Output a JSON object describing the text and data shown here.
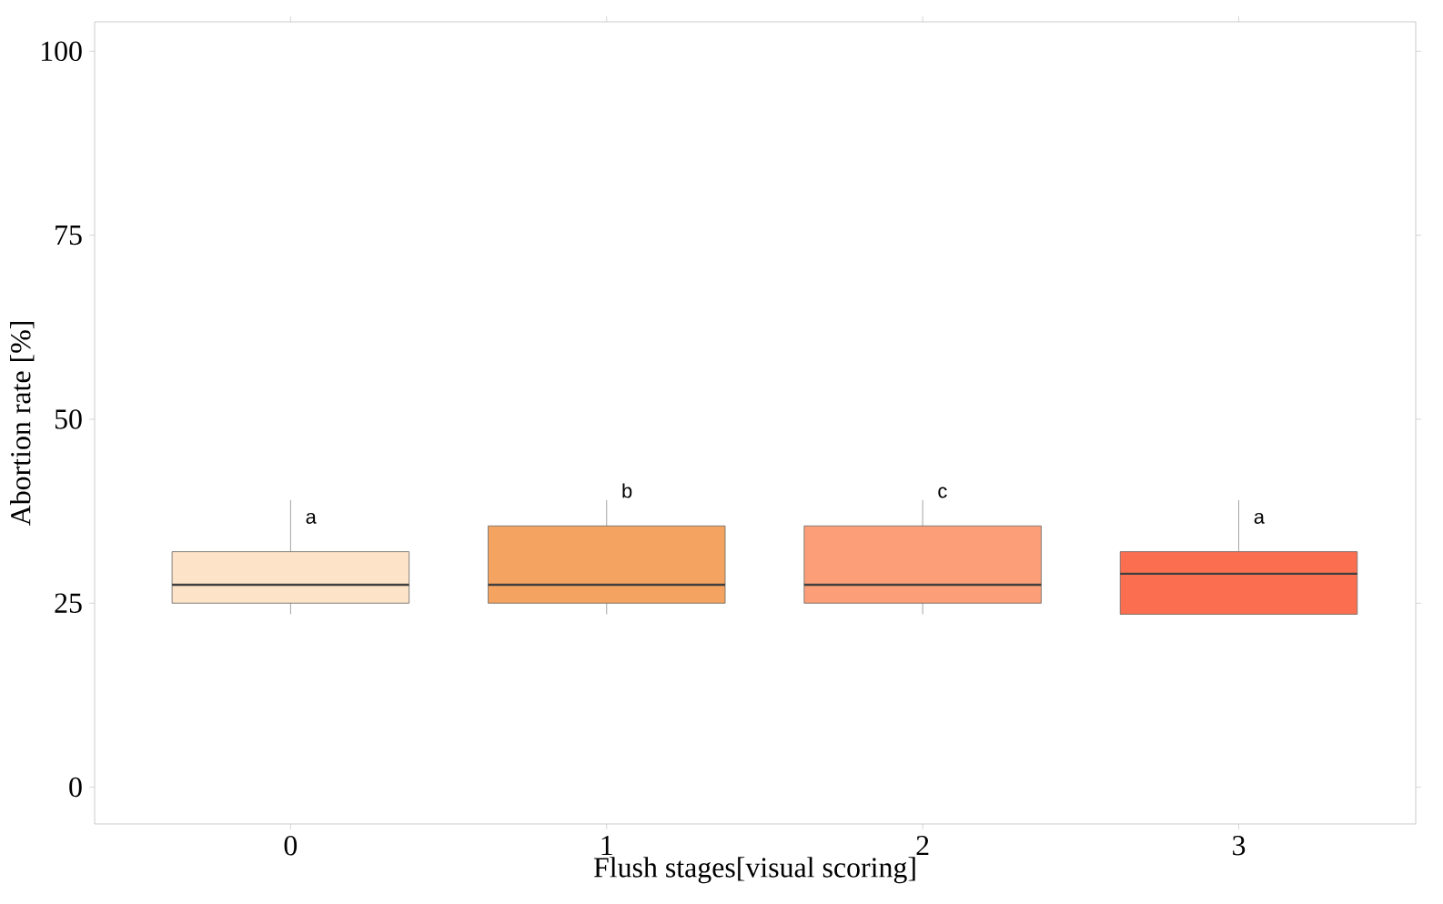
{
  "chart_data": {
    "type": "box",
    "xlabel": "Flush stages[visual scoring]",
    "ylabel": "Abortion rate [%]",
    "categories": [
      "0",
      "1",
      "2",
      "3"
    ],
    "boxes": [
      {
        "low": 23.5,
        "q1": 25,
        "median": 27.5,
        "q3": 32,
        "high": 39
      },
      {
        "low": 23.5,
        "q1": 25,
        "median": 27.5,
        "q3": 35.5,
        "high": 39
      },
      {
        "low": 23.5,
        "q1": 25,
        "median": 27.5,
        "q3": 35.5,
        "high": 39
      },
      {
        "low": 23.5,
        "q1": 23.5,
        "median": 29,
        "q3": 32,
        "high": 39
      }
    ],
    "colors": [
      "#fde3c8",
      "#f4a460",
      "#fc9f78",
      "#fb6f50"
    ],
    "ylim": [
      -5,
      104
    ],
    "yticks": [
      0,
      25,
      50,
      75,
      100
    ],
    "annotations": [
      "a",
      "b",
      "c",
      "a"
    ],
    "grid": false
  }
}
